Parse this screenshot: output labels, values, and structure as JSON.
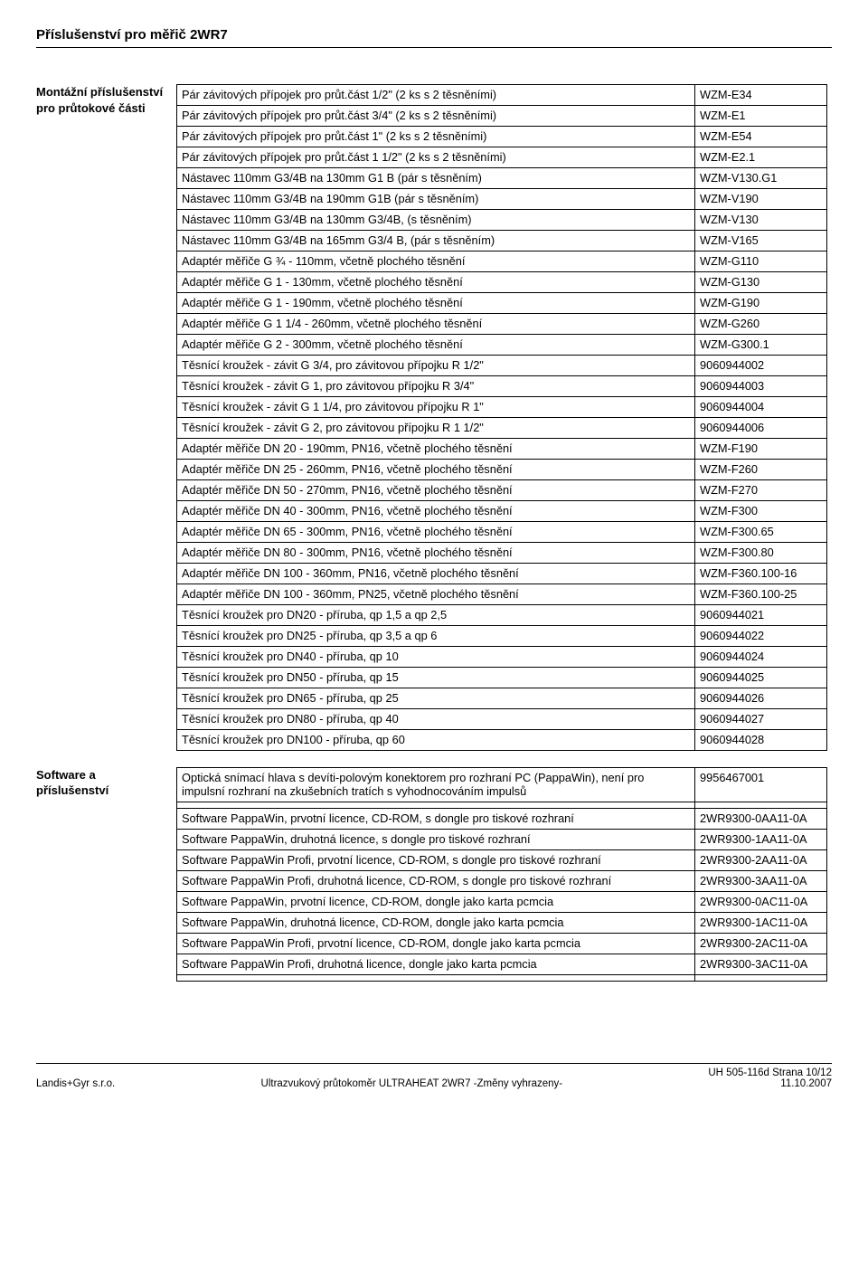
{
  "title": "Příslušenství pro měřič 2WR7",
  "section1": {
    "label": "Montážní příslušenství pro průtokové části",
    "rows": [
      [
        "Pár závitových přípojek pro průt.část 1/2\" (2 ks s 2 těsněními)",
        "WZM-E34"
      ],
      [
        "Pár závitových přípojek pro průt.část 3/4\" (2 ks s 2 těsněními)",
        "WZM-E1"
      ],
      [
        "Pár závitových přípojek pro průt.část 1\" (2 ks s 2 těsněními)",
        "WZM-E54"
      ],
      [
        "Pár závitových přípojek pro průt.část 1 1/2\" (2 ks s 2 těsněními)",
        "WZM-E2.1"
      ],
      [
        "Nástavec 110mm G3/4B na 130mm G1 B (pár s těsněním)",
        "WZM-V130.G1"
      ],
      [
        "Nástavec 110mm G3/4B na 190mm G1B (pár s těsněním)",
        "WZM-V190"
      ],
      [
        "Nástavec 110mm G3/4B na 130mm G3/4B, (s těsněním)",
        "WZM-V130"
      ],
      [
        "Nástavec 110mm G3/4B na 165mm G3/4 B, (pár s těsněním)",
        "WZM-V165"
      ],
      [
        "Adaptér měřiče G ¾ - 110mm, včetně plochého těsnění",
        "WZM-G110"
      ],
      [
        "Adaptér měřiče G 1 - 130mm, včetně plochého těsnění",
        "WZM-G130"
      ],
      [
        "Adaptér měřiče G 1 - 190mm, včetně plochého těsnění",
        "WZM-G190"
      ],
      [
        "Adaptér měřiče G 1 1/4 - 260mm, včetně plochého těsnění",
        "WZM-G260"
      ],
      [
        "Adaptér měřiče G 2 - 300mm, včetně plochého těsnění",
        "WZM-G300.1"
      ],
      [
        "Těsnící kroužek - závit G 3/4, pro závitovou přípojku R 1/2\"",
        "9060944002"
      ],
      [
        "Těsnící kroužek - závit G 1, pro závitovou přípojku R 3/4\"",
        "9060944003"
      ],
      [
        "Těsnící kroužek - závit G 1 1/4, pro závitovou přípojku R 1\"",
        "9060944004"
      ],
      [
        "Těsnící kroužek - závit G 2, pro závitovou přípojku R 1 1/2\"",
        "9060944006"
      ],
      [
        "Adaptér měřiče DN 20 - 190mm, PN16, včetně plochého těsnění",
        "WZM-F190"
      ],
      [
        "Adaptér měřiče DN 25 - 260mm, PN16, včetně plochého těsnění",
        "WZM-F260"
      ],
      [
        "Adaptér měřiče DN 50 - 270mm, PN16, včetně plochého těsnění",
        "WZM-F270"
      ],
      [
        "Adaptér měřiče DN 40 - 300mm, PN16, včetně plochého těsnění",
        "WZM-F300"
      ],
      [
        "Adaptér měřiče DN 65 - 300mm, PN16, včetně plochého těsnění",
        "WZM-F300.65"
      ],
      [
        "Adaptér měřiče DN 80 - 300mm, PN16, včetně plochého těsnění",
        "WZM-F300.80"
      ],
      [
        "Adaptér měřiče DN 100 - 360mm, PN16, včetně plochého těsnění",
        "WZM-F360.100-16"
      ],
      [
        "Adaptér měřiče DN 100 - 360mm, PN25, včetně plochého těsnění",
        "WZM-F360.100-25"
      ],
      [
        "Těsnící kroužek pro DN20 - příruba, qp 1,5 a qp 2,5",
        "9060944021"
      ],
      [
        "Těsnící kroužek pro DN25 - příruba, qp 3,5 a qp 6",
        "9060944022"
      ],
      [
        "Těsnící kroužek pro DN40 - příruba, qp 10",
        "9060944024"
      ],
      [
        "Těsnící kroužek pro DN50 - příruba, qp 15",
        "9060944025"
      ],
      [
        "Těsnící kroužek pro DN65 - příruba, qp 25",
        "9060944026"
      ],
      [
        "Těsnící kroužek pro DN80 - příruba, qp 40",
        "9060944027"
      ],
      [
        "Těsnící kroužek pro DN100 - příruba, qp 60",
        "9060944028"
      ]
    ]
  },
  "section2": {
    "label": "Software a příslušenství",
    "rows": [
      [
        "Optická snímací hlava s devíti-polovým konektorem pro rozhraní PC (PappaWin), není pro impulsní rozhraní na zkušebních tratích s vyhodnocováním impulsů",
        "9956467001"
      ],
      [
        "",
        ""
      ],
      [
        "Software PappaWin, prvotní licence, CD-ROM, s dongle pro tiskové rozhraní",
        "2WR9300-0AA11-0A"
      ],
      [
        "Software PappaWin, druhotná licence, s dongle pro tiskové rozhraní",
        "2WR9300-1AA11-0A"
      ],
      [
        "Software PappaWin Profi, prvotní licence, CD-ROM, s dongle pro tiskové rozhraní",
        "2WR9300-2AA11-0A"
      ],
      [
        "Software PappaWin Profi, druhotná licence, CD-ROM, s dongle pro tiskové rozhraní",
        "2WR9300-3AA11-0A"
      ],
      [
        "Software PappaWin, prvotní licence, CD-ROM, dongle jako karta pcmcia",
        "2WR9300-0AC11-0A"
      ],
      [
        "Software PappaWin, druhotná licence, CD-ROM, dongle jako karta pcmcia",
        "2WR9300-1AC11-0A"
      ],
      [
        "Software PappaWin Profi, prvotní licence, CD-ROM, dongle jako karta pcmcia",
        "2WR9300-2AC11-0A"
      ],
      [
        "Software PappaWin Profi, druhotná licence, dongle jako karta pcmcia",
        "2WR9300-3AC11-0A"
      ],
      [
        "",
        ""
      ]
    ]
  },
  "footer": {
    "left": "Landis+Gyr s.r.o.",
    "center": "Ultrazvukový průtokoměr ULTRAHEAT 2WR7   -Změny vyhrazeny-",
    "right1": "UH 505-116d   Strana 10/12",
    "right2": "11.10.2007"
  }
}
